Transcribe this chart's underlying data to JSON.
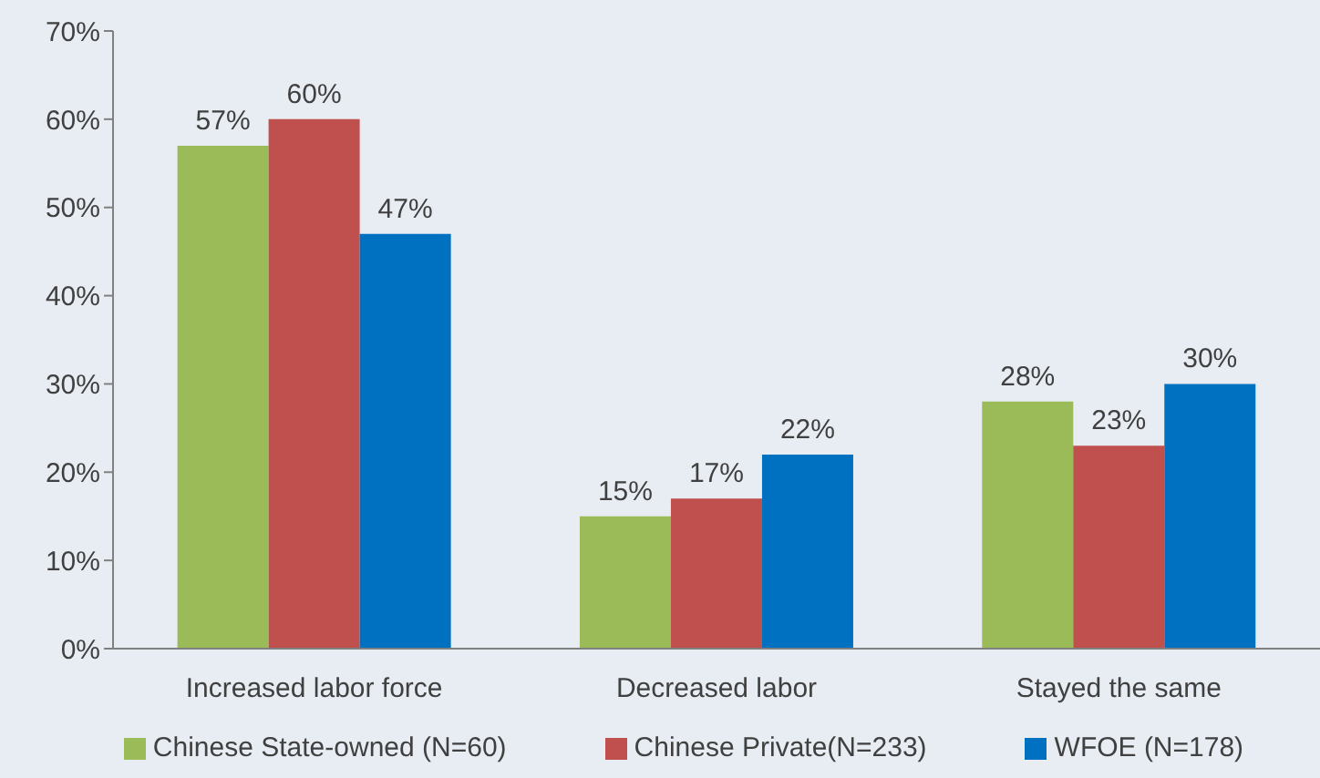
{
  "chart_data": {
    "type": "bar",
    "categories": [
      "Increased labor force",
      "Decreased labor",
      "Stayed the same"
    ],
    "series": [
      {
        "name": "Chinese State-owned (N=60)",
        "color": "#9bbb59",
        "values": [
          57,
          15,
          28
        ],
        "value_labels": [
          "57%",
          "15%",
          "28%"
        ]
      },
      {
        "name": "Chinese Private(N=233)",
        "color": "#c0504d",
        "values": [
          60,
          17,
          23
        ],
        "value_labels": [
          "60%",
          "17%",
          "23%"
        ]
      },
      {
        "name": "WFOE (N=178)",
        "color": "#0070c0",
        "values": [
          47,
          22,
          30
        ],
        "value_labels": [
          "47%",
          "22%",
          "30%"
        ]
      }
    ],
    "ylim": [
      0,
      70
    ],
    "yticks": [
      {
        "value": 0,
        "label": "0%"
      },
      {
        "value": 10,
        "label": "10%"
      },
      {
        "value": 20,
        "label": "20%"
      },
      {
        "value": 30,
        "label": "30%"
      },
      {
        "value": 40,
        "label": "40%"
      },
      {
        "value": 50,
        "label": "50%"
      },
      {
        "value": 60,
        "label": "60%"
      },
      {
        "value": 70,
        "label": "70%"
      }
    ],
    "grid": false,
    "legend": "bottom"
  }
}
